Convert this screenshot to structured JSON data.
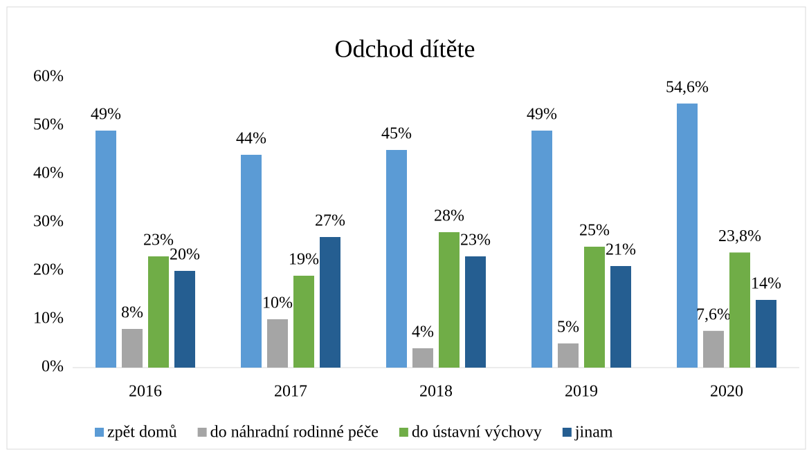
{
  "chart_data": {
    "type": "bar",
    "title": "Odchod dítěte",
    "categories": [
      "2016",
      "2017",
      "2018",
      "2019",
      "2020"
    ],
    "series": [
      {
        "name": "zpět domů",
        "color": "#5b9bd5",
        "values": [
          49,
          44,
          45,
          49,
          54.6
        ],
        "value_labels": [
          "49%",
          "44%",
          "45%",
          "49%",
          "54,6%"
        ]
      },
      {
        "name": "do náhradní rodinné péče",
        "color": "#a5a5a5",
        "values": [
          8,
          10,
          4,
          5,
          7.6
        ],
        "value_labels": [
          "8%",
          "10%",
          "4%",
          "5%",
          "7,6%"
        ]
      },
      {
        "name": "do ústavní výchovy",
        "color": "#70ad47",
        "values": [
          23,
          19,
          28,
          25,
          23.8
        ],
        "value_labels": [
          "23%",
          "19%",
          "28%",
          "25%",
          "23,8%"
        ]
      },
      {
        "name": "jinam",
        "color": "#255e91",
        "values": [
          20,
          27,
          23,
          21,
          14
        ],
        "value_labels": [
          "20%",
          "27%",
          "23%",
          "21%",
          "14%"
        ]
      }
    ],
    "ylim": [
      0,
      60
    ],
    "yticks": [
      {
        "value": 0,
        "label": "0%"
      },
      {
        "value": 10,
        "label": "10%"
      },
      {
        "value": 20,
        "label": "20%"
      },
      {
        "value": 30,
        "label": "30%"
      },
      {
        "value": 40,
        "label": "40%"
      },
      {
        "value": 50,
        "label": "50%"
      },
      {
        "value": 60,
        "label": "60%"
      }
    ],
    "legend": "bottom"
  }
}
